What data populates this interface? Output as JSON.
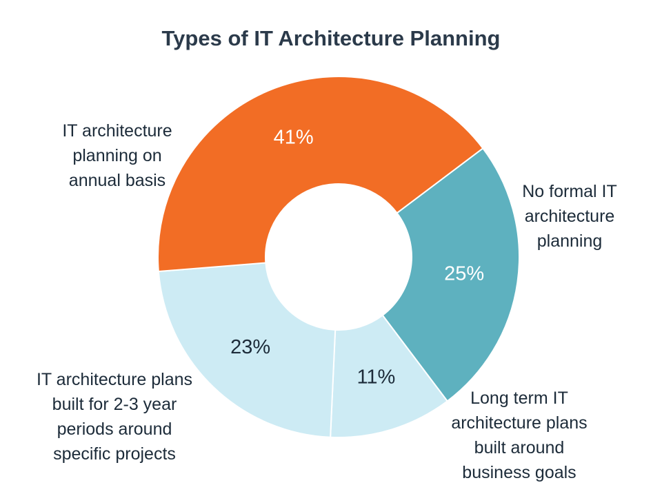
{
  "chart_data": {
    "type": "pie",
    "variant": "donut",
    "title": "Types of IT Architecture Planning",
    "slices": [
      {
        "label_lines": [
          "No formal IT",
          "architecture",
          "planning"
        ],
        "value": 25,
        "display": "25%",
        "color": "#5eb1bf",
        "value_color": "#ffffff"
      },
      {
        "label_lines": [
          "Long term IT",
          "architecture plans",
          "built around",
          "business goals"
        ],
        "value": 11,
        "display": "11%",
        "color": "#cdebf4",
        "value_color": "#1c2b39"
      },
      {
        "label_lines": [
          "IT architecture plans",
          "built for 2-3 year",
          "periods around",
          "specific projects"
        ],
        "value": 23,
        "display": "23%",
        "color": "#cdebf4",
        "value_color": "#1c2b39"
      },
      {
        "label_lines": [
          "IT architecture",
          "planning on",
          "annual basis"
        ],
        "value": 41,
        "display": "41%",
        "color": "#f26d25",
        "value_color": "#ffffff"
      }
    ],
    "legend": "none (labels outside slices)"
  }
}
